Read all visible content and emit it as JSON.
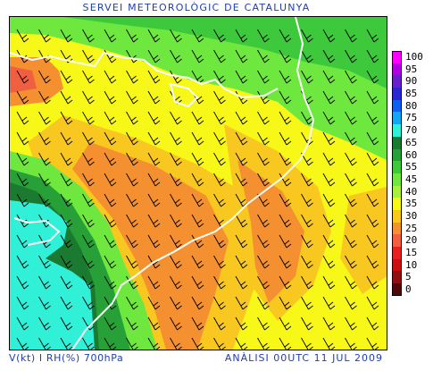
{
  "header": {
    "title": "SERVEI METEOROLÒGIC DE CATALUNYA"
  },
  "footer": {
    "variables": "V(kt) I RH(%) 700hPa",
    "analysis": "ANÀLISI 00UTC 11 JUL 2009"
  },
  "legend": [
    {
      "label": "100",
      "color": "#ff00ff"
    },
    {
      "label": "95",
      "color": "#b000e0"
    },
    {
      "label": "90",
      "color": "#6a20c8"
    },
    {
      "label": "85",
      "color": "#2828d0"
    },
    {
      "label": "80",
      "color": "#1060f0"
    },
    {
      "label": "75",
      "color": "#10a8f0"
    },
    {
      "label": "70",
      "color": "#30f0d8"
    },
    {
      "label": "65",
      "color": "#1a7a30"
    },
    {
      "label": "60",
      "color": "#28a038"
    },
    {
      "label": "55",
      "color": "#3ec83c"
    },
    {
      "label": "45",
      "color": "#6ee83e"
    },
    {
      "label": "40",
      "color": "#a8f040"
    },
    {
      "label": "35",
      "color": "#f8f818"
    },
    {
      "label": "30",
      "color": "#f8c820"
    },
    {
      "label": "25",
      "color": "#f49030"
    },
    {
      "label": "20",
      "color": "#f06040"
    },
    {
      "label": "15",
      "color": "#e82020"
    },
    {
      "label": "10",
      "color": "#c81010"
    },
    {
      "label": "5",
      "color": "#901010"
    },
    {
      "label": "0",
      "color": "#500808"
    }
  ],
  "map": {
    "wind_barb_color": "#000000",
    "coastline_color": "#ffffff"
  }
}
